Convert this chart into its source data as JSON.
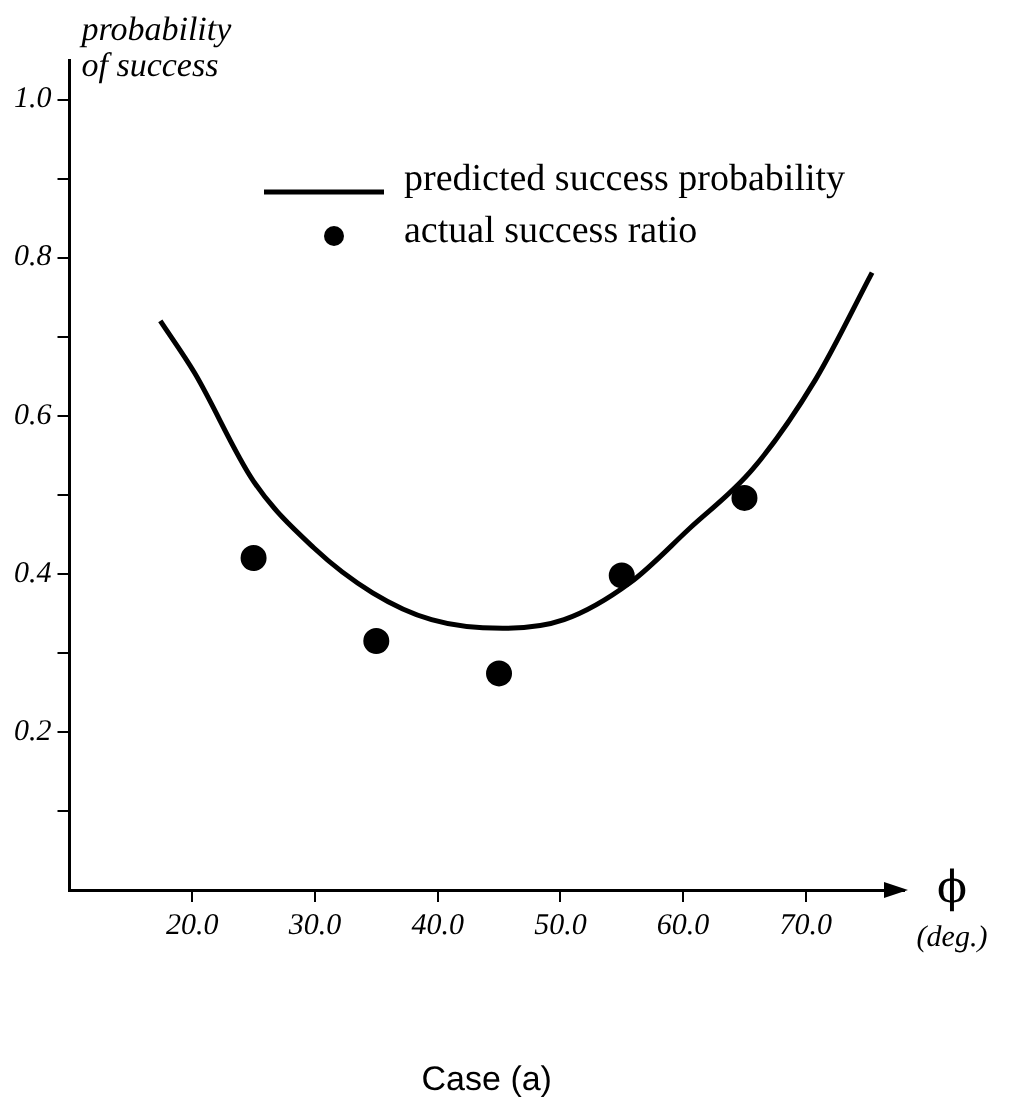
{
  "chart_data": {
    "type": "line",
    "ylabel": "probability\nof success",
    "xlabel": "ϕ\n(deg.)",
    "annotations": [
      "Case (a)"
    ],
    "series": [
      {
        "name": "predicted success probability",
        "color": "#000000",
        "marker": "none",
        "x": [
          17.4,
          20.2,
          25.0,
          29.9,
          34.7,
          39.5,
          45.3,
          50.3,
          55.7,
          60.5,
          65.7,
          70.8,
          75.4
        ],
        "values": [
          0.72,
          0.654,
          0.517,
          0.433,
          0.376,
          0.342,
          0.331,
          0.342,
          0.389,
          0.457,
          0.533,
          0.646,
          0.781
        ]
      },
      {
        "name": "actual success ratio",
        "type": "scatter",
        "color": "#000000",
        "marker": "circle",
        "x": [
          25,
          35,
          45,
          55,
          65
        ],
        "values": [
          0.42,
          0.315,
          0.274,
          0.398,
          0.496
        ]
      }
    ],
    "xlim": [
      10,
      78
    ],
    "ylim": [
      0,
      1.05
    ],
    "xticks": [
      {
        "value": 20,
        "label": "20.0"
      },
      {
        "value": 30,
        "label": "30.0"
      },
      {
        "value": 40,
        "label": "40.0"
      },
      {
        "value": 50,
        "label": "50.0"
      },
      {
        "value": 60,
        "label": "60.0"
      },
      {
        "value": 70,
        "label": "70.0"
      }
    ],
    "yticks": [
      {
        "value": 0.1,
        "label": null
      },
      {
        "value": 0.2,
        "label": "0.2"
      },
      {
        "value": 0.3,
        "label": null
      },
      {
        "value": 0.4,
        "label": "0.4"
      },
      {
        "value": 0.5,
        "label": null
      },
      {
        "value": 0.6,
        "label": "0.6"
      },
      {
        "value": 0.7,
        "label": null
      },
      {
        "value": 0.8,
        "label": "0.8"
      },
      {
        "value": 0.9,
        "label": null
      },
      {
        "value": 1.0,
        "label": "1.0"
      }
    ],
    "grid": false,
    "legend": "top right"
  }
}
